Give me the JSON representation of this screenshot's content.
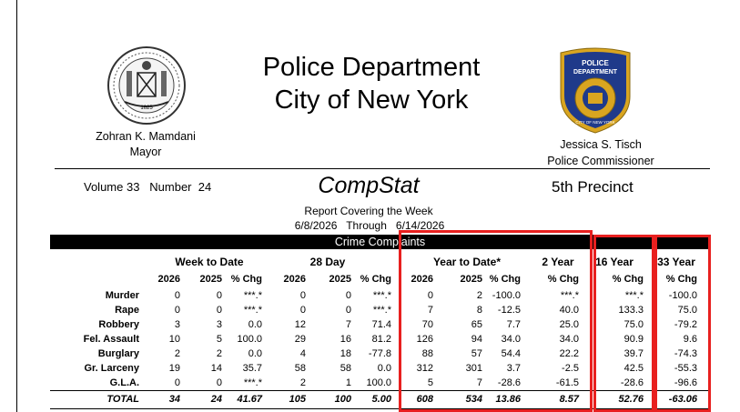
{
  "header": {
    "department_line1": "Police Department",
    "department_line2": "City of New York",
    "mayor_name": "Zohran K. Mamdani",
    "mayor_title": "Mayor",
    "commissioner_name": "Jessica S. Tisch",
    "commissioner_title": "Police Commissioner",
    "seal_year": "1625",
    "badge_text_top": "POLICE",
    "badge_text_mid": "DEPARTMENT",
    "badge_text_ring": "CITY OF NEW YORK"
  },
  "report": {
    "volume_number": "Volume 33   Number  24",
    "name": "CompStat",
    "precinct": "5th Precinct",
    "covering": "Report Covering the Week",
    "date_range": "6/8/2026   Through   6/14/2026",
    "section_title": "Crime Complaints"
  },
  "groups": {
    "week": "Week to Date",
    "day28": "28 Day",
    "ytd": "Year to Date*",
    "yr2": "2 Year",
    "yr16": "16 Year",
    "yr33": "33 Year"
  },
  "column_headers": [
    "2026",
    "2025",
    "% Chg",
    "2026",
    "2025",
    "% Chg",
    "2026",
    "2025",
    "% Chg",
    "% Chg",
    "% Chg",
    "% Chg"
  ],
  "rows": [
    {
      "label": "Murder",
      "values": [
        "0",
        "0",
        "***.*",
        "0",
        "0",
        "***.*",
        "0",
        "2",
        "-100.0",
        "***.*",
        "***.*",
        "-100.0"
      ]
    },
    {
      "label": "Rape",
      "values": [
        "0",
        "0",
        "***.*",
        "0",
        "0",
        "***.*",
        "7",
        "8",
        "-12.5",
        "40.0",
        "133.3",
        "75.0"
      ]
    },
    {
      "label": "Robbery",
      "values": [
        "3",
        "3",
        "0.0",
        "12",
        "7",
        "71.4",
        "70",
        "65",
        "7.7",
        "25.0",
        "75.0",
        "-79.2"
      ]
    },
    {
      "label": "Fel. Assault",
      "values": [
        "10",
        "5",
        "100.0",
        "29",
        "16",
        "81.2",
        "126",
        "94",
        "34.0",
        "34.0",
        "90.9",
        "9.6"
      ]
    },
    {
      "label": "Burglary",
      "values": [
        "2",
        "2",
        "0.0",
        "4",
        "18",
        "-77.8",
        "88",
        "57",
        "54.4",
        "22.2",
        "39.7",
        "-74.3"
      ]
    },
    {
      "label": "Gr. Larceny",
      "values": [
        "19",
        "14",
        "35.7",
        "58",
        "58",
        "0.0",
        "312",
        "301",
        "3.7",
        "-2.5",
        "42.5",
        "-55.3"
      ]
    },
    {
      "label": "G.L.A.",
      "values": [
        "0",
        "0",
        "***.*",
        "2",
        "1",
        "100.0",
        "5",
        "7",
        "-28.6",
        "-61.5",
        "-28.6",
        "-96.6"
      ]
    }
  ],
  "total": {
    "label": "TOTAL",
    "values": [
      "34",
      "24",
      "41.67",
      "105",
      "100",
      "5.00",
      "608",
      "534",
      "13.86",
      "8.57",
      "52.76",
      "-63.06"
    ]
  },
  "colors": {
    "highlight": "#e8201f",
    "bar": "#000000",
    "badge_blue": "#1f3a8a",
    "badge_gold": "#d9a520"
  }
}
